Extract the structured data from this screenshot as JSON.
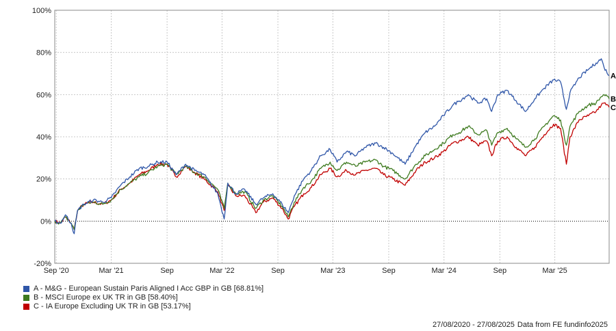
{
  "chart_data": {
    "type": "line",
    "ylim": [
      -20,
      100
    ],
    "y_ticks": [
      -20,
      0,
      20,
      40,
      60,
      80,
      100
    ],
    "y_tick_labels": [
      "-20%",
      "0%",
      "20%",
      "40%",
      "60%",
      "80%",
      "100%"
    ],
    "x_range": [
      "2020-08-27",
      "2025-08-27"
    ],
    "x_ticks": [
      {
        "date": "2020-09-01",
        "label": "Sep '20"
      },
      {
        "date": "2021-03-01",
        "label": "Mar '21"
      },
      {
        "date": "2021-09-01",
        "label": "Sep"
      },
      {
        "date": "2022-03-01",
        "label": "Mar '22"
      },
      {
        "date": "2022-09-01",
        "label": "Sep"
      },
      {
        "date": "2023-03-01",
        "label": "Mar '23"
      },
      {
        "date": "2023-09-01",
        "label": "Sep"
      },
      {
        "date": "2024-03-01",
        "label": "Mar '24"
      },
      {
        "date": "2024-09-01",
        "label": "Sep"
      },
      {
        "date": "2025-03-01",
        "label": "Mar '25"
      }
    ],
    "grid": true,
    "legend_position": "bottom-left",
    "series": [
      {
        "name": "A - M&G - European Sustain Paris Aligned I Acc GBP in GB [68.81%]",
        "end_label": "A",
        "color": "#2f56a8",
        "points": [
          [
            "2020-08-27",
            0
          ],
          [
            "2020-09-15",
            -1
          ],
          [
            "2020-10-01",
            3
          ],
          [
            "2020-10-20",
            -1
          ],
          [
            "2020-10-30",
            -6
          ],
          [
            "2020-11-10",
            5
          ],
          [
            "2020-12-01",
            8
          ],
          [
            "2021-01-01",
            10
          ],
          [
            "2021-02-01",
            9
          ],
          [
            "2021-03-01",
            11
          ],
          [
            "2021-04-01",
            17
          ],
          [
            "2021-05-01",
            21
          ],
          [
            "2021-06-01",
            25
          ],
          [
            "2021-07-01",
            26
          ],
          [
            "2021-08-01",
            28
          ],
          [
            "2021-09-01",
            28
          ],
          [
            "2021-10-01",
            22
          ],
          [
            "2021-11-01",
            27
          ],
          [
            "2021-12-01",
            24
          ],
          [
            "2022-01-01",
            22
          ],
          [
            "2022-02-15",
            13
          ],
          [
            "2022-03-08",
            1
          ],
          [
            "2022-03-20",
            18
          ],
          [
            "2022-04-15",
            13
          ],
          [
            "2022-05-15",
            15
          ],
          [
            "2022-06-20",
            8
          ],
          [
            "2022-07-15",
            11
          ],
          [
            "2022-08-15",
            13
          ],
          [
            "2022-09-15",
            8
          ],
          [
            "2022-10-05",
            4
          ],
          [
            "2022-10-25",
            12
          ],
          [
            "2022-11-25",
            20
          ],
          [
            "2022-12-20",
            24
          ],
          [
            "2023-01-20",
            31
          ],
          [
            "2023-02-20",
            34
          ],
          [
            "2023-03-15",
            28
          ],
          [
            "2023-04-15",
            33
          ],
          [
            "2023-05-15",
            31
          ],
          [
            "2023-06-15",
            35
          ],
          [
            "2023-07-20",
            37
          ],
          [
            "2023-08-15",
            35
          ],
          [
            "2023-09-15",
            32
          ],
          [
            "2023-10-25",
            27
          ],
          [
            "2023-11-30",
            36
          ],
          [
            "2023-12-30",
            42
          ],
          [
            "2024-01-30",
            45
          ],
          [
            "2024-02-28",
            50
          ],
          [
            "2024-03-30",
            55
          ],
          [
            "2024-04-20",
            57
          ],
          [
            "2024-05-20",
            60
          ],
          [
            "2024-06-20",
            56
          ],
          [
            "2024-07-20",
            58
          ],
          [
            "2024-08-05",
            52
          ],
          [
            "2024-08-25",
            60
          ],
          [
            "2024-09-25",
            62
          ],
          [
            "2024-10-25",
            57
          ],
          [
            "2024-11-25",
            52
          ],
          [
            "2024-12-25",
            58
          ],
          [
            "2025-01-25",
            63
          ],
          [
            "2025-02-25",
            67
          ],
          [
            "2025-03-20",
            66
          ],
          [
            "2025-04-08",
            53
          ],
          [
            "2025-04-20",
            61
          ],
          [
            "2025-05-20",
            68
          ],
          [
            "2025-06-20",
            72
          ],
          [
            "2025-07-15",
            75
          ],
          [
            "2025-08-01",
            77
          ],
          [
            "2025-08-10",
            73
          ],
          [
            "2025-08-27",
            69
          ]
        ]
      },
      {
        "name": "B - MSCI Europe ex UK TR in GB [58.40%]",
        "end_label": "B",
        "color": "#3e7a1f",
        "points": [
          [
            "2020-08-27",
            0
          ],
          [
            "2020-09-15",
            -1
          ],
          [
            "2020-10-01",
            2
          ],
          [
            "2020-10-20",
            -1
          ],
          [
            "2020-10-30",
            -4
          ],
          [
            "2020-11-10",
            5
          ],
          [
            "2020-12-01",
            8
          ],
          [
            "2021-01-01",
            9
          ],
          [
            "2021-02-01",
            8
          ],
          [
            "2021-03-01",
            10
          ],
          [
            "2021-04-01",
            15
          ],
          [
            "2021-05-01",
            18
          ],
          [
            "2021-06-01",
            21
          ],
          [
            "2021-07-01",
            23
          ],
          [
            "2021-08-01",
            26
          ],
          [
            "2021-09-01",
            27
          ],
          [
            "2021-10-01",
            22
          ],
          [
            "2021-11-01",
            26
          ],
          [
            "2021-12-01",
            23
          ],
          [
            "2022-01-01",
            21
          ],
          [
            "2022-02-15",
            15
          ],
          [
            "2022-03-08",
            6
          ],
          [
            "2022-03-20",
            18
          ],
          [
            "2022-04-15",
            13
          ],
          [
            "2022-05-15",
            14
          ],
          [
            "2022-06-20",
            6
          ],
          [
            "2022-07-15",
            10
          ],
          [
            "2022-08-15",
            12
          ],
          [
            "2022-09-15",
            7
          ],
          [
            "2022-10-05",
            2
          ],
          [
            "2022-10-25",
            9
          ],
          [
            "2022-11-25",
            16
          ],
          [
            "2022-12-20",
            19
          ],
          [
            "2023-01-20",
            25
          ],
          [
            "2023-02-20",
            28
          ],
          [
            "2023-03-15",
            24
          ],
          [
            "2023-04-15",
            28
          ],
          [
            "2023-05-15",
            26
          ],
          [
            "2023-06-15",
            28
          ],
          [
            "2023-07-20",
            29
          ],
          [
            "2023-08-15",
            26
          ],
          [
            "2023-09-15",
            24
          ],
          [
            "2023-10-25",
            20
          ],
          [
            "2023-11-30",
            27
          ],
          [
            "2023-12-30",
            31
          ],
          [
            "2024-01-30",
            34
          ],
          [
            "2024-02-28",
            37
          ],
          [
            "2024-03-30",
            41
          ],
          [
            "2024-04-20",
            42
          ],
          [
            "2024-05-20",
            45
          ],
          [
            "2024-06-20",
            41
          ],
          [
            "2024-07-20",
            43
          ],
          [
            "2024-08-05",
            36
          ],
          [
            "2024-08-25",
            42
          ],
          [
            "2024-09-25",
            44
          ],
          [
            "2024-10-25",
            39
          ],
          [
            "2024-11-25",
            35
          ],
          [
            "2024-12-25",
            39
          ],
          [
            "2025-01-25",
            45
          ],
          [
            "2025-02-25",
            50
          ],
          [
            "2025-03-20",
            48
          ],
          [
            "2025-04-08",
            36
          ],
          [
            "2025-04-20",
            45
          ],
          [
            "2025-05-20",
            52
          ],
          [
            "2025-06-20",
            55
          ],
          [
            "2025-07-15",
            56
          ],
          [
            "2025-08-01",
            59
          ],
          [
            "2025-08-10",
            60
          ],
          [
            "2025-08-27",
            58
          ]
        ]
      },
      {
        "name": "C - IA Europe Excluding UK TR in GB [53.17%]",
        "end_label": "C",
        "color": "#c00000",
        "points": [
          [
            "2020-08-27",
            0
          ],
          [
            "2020-09-15",
            -1
          ],
          [
            "2020-10-01",
            2
          ],
          [
            "2020-10-20",
            -1
          ],
          [
            "2020-10-30",
            -4
          ],
          [
            "2020-11-10",
            5
          ],
          [
            "2020-12-01",
            8
          ],
          [
            "2021-01-01",
            9
          ],
          [
            "2021-02-01",
            8
          ],
          [
            "2021-03-01",
            10
          ],
          [
            "2021-04-01",
            15
          ],
          [
            "2021-05-01",
            18
          ],
          [
            "2021-06-01",
            22
          ],
          [
            "2021-07-01",
            24
          ],
          [
            "2021-08-01",
            27
          ],
          [
            "2021-09-01",
            27
          ],
          [
            "2021-10-01",
            21
          ],
          [
            "2021-11-01",
            26
          ],
          [
            "2021-12-01",
            23
          ],
          [
            "2022-01-01",
            20
          ],
          [
            "2022-02-15",
            14
          ],
          [
            "2022-03-08",
            5
          ],
          [
            "2022-03-20",
            17
          ],
          [
            "2022-04-15",
            12
          ],
          [
            "2022-05-15",
            12
          ],
          [
            "2022-06-20",
            4
          ],
          [
            "2022-07-15",
            9
          ],
          [
            "2022-08-15",
            11
          ],
          [
            "2022-09-15",
            6
          ],
          [
            "2022-10-05",
            1
          ],
          [
            "2022-10-25",
            7
          ],
          [
            "2022-11-25",
            13
          ],
          [
            "2022-12-20",
            16
          ],
          [
            "2023-01-20",
            22
          ],
          [
            "2023-02-20",
            25
          ],
          [
            "2023-03-15",
            21
          ],
          [
            "2023-04-15",
            24
          ],
          [
            "2023-05-15",
            22
          ],
          [
            "2023-06-15",
            24
          ],
          [
            "2023-07-20",
            25
          ],
          [
            "2023-08-15",
            22
          ],
          [
            "2023-09-15",
            20
          ],
          [
            "2023-10-25",
            17
          ],
          [
            "2023-11-30",
            24
          ],
          [
            "2023-12-30",
            28
          ],
          [
            "2024-01-30",
            30
          ],
          [
            "2024-02-28",
            33
          ],
          [
            "2024-03-30",
            37
          ],
          [
            "2024-04-20",
            38
          ],
          [
            "2024-05-20",
            40
          ],
          [
            "2024-06-20",
            36
          ],
          [
            "2024-07-20",
            38
          ],
          [
            "2024-08-05",
            31
          ],
          [
            "2024-08-25",
            38
          ],
          [
            "2024-09-25",
            40
          ],
          [
            "2024-10-25",
            35
          ],
          [
            "2024-11-25",
            31
          ],
          [
            "2024-12-25",
            35
          ],
          [
            "2025-01-25",
            41
          ],
          [
            "2025-02-25",
            46
          ],
          [
            "2025-03-20",
            44
          ],
          [
            "2025-04-08",
            27
          ],
          [
            "2025-04-20",
            40
          ],
          [
            "2025-05-20",
            48
          ],
          [
            "2025-06-20",
            50
          ],
          [
            "2025-07-15",
            52
          ],
          [
            "2025-08-01",
            55
          ],
          [
            "2025-08-10",
            56
          ],
          [
            "2025-08-27",
            54
          ]
        ]
      }
    ]
  },
  "footer": {
    "period": "27/08/2020 - 27/08/2025",
    "source": "Data from FE fundinfo2025"
  }
}
